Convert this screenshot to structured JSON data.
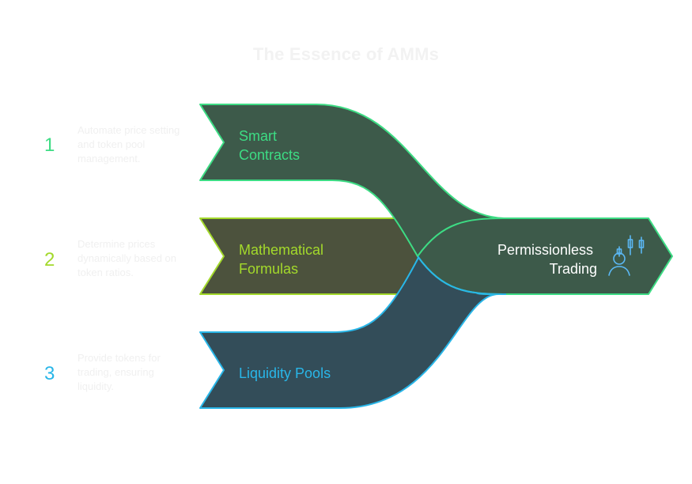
{
  "title": "The Essence of AMMs",
  "items": [
    {
      "number": "1",
      "description": "Automate price setting and token pool management.",
      "label_lines": [
        "Smart",
        "Contracts"
      ],
      "color": "#3ddc84"
    },
    {
      "number": "2",
      "description": "Determine prices dynamically based on token ratios.",
      "label_lines": [
        "Mathematical",
        "Formulas"
      ],
      "color": "#a3d92b"
    },
    {
      "number": "3",
      "description": "Provide tokens for trading, ensuring liquidity.",
      "label_lines": [
        "Liquidity Pools"
      ],
      "color": "#29b6e8"
    }
  ],
  "result": {
    "label_lines": [
      "Permissionless",
      "Trading"
    ],
    "icon": "trader-chart-icon",
    "color": "#ffffff"
  },
  "colors": {
    "smart_fill": "#3d5a4a",
    "math_fill": "#4c523d",
    "liquidity_fill": "#334d59",
    "result_fill": "#3d5a4a"
  }
}
